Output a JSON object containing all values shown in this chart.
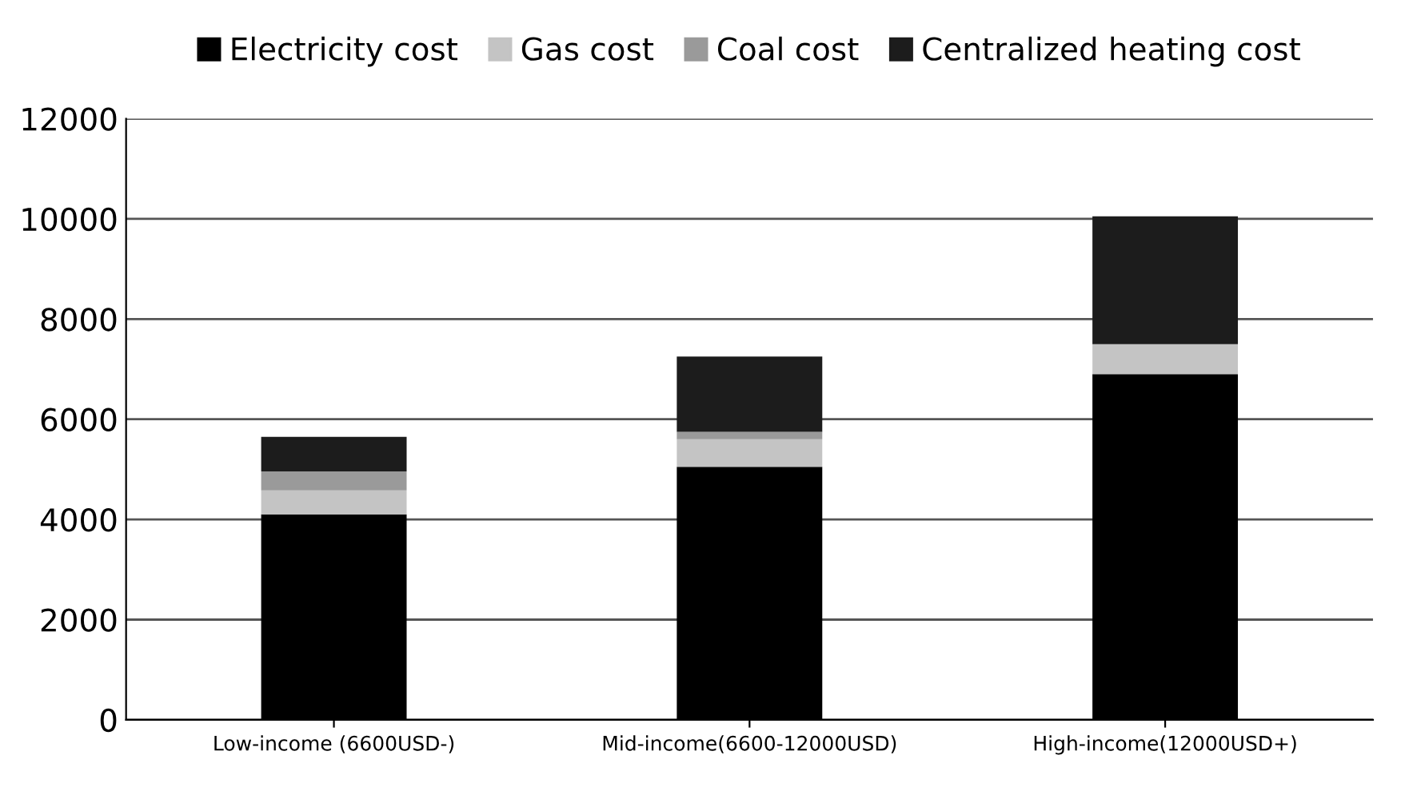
{
  "chart_data": {
    "type": "bar",
    "stacked": true,
    "categories": [
      "Low-income (6600USD-)",
      "Mid-income(6600-12000USD)",
      "High-income(12000USD+)"
    ],
    "series": [
      {
        "name": "Electricity cost",
        "color": "#000000",
        "values": [
          4100,
          5050,
          6900
        ]
      },
      {
        "name": "Gas cost",
        "color": "#c4c4c4",
        "values": [
          480,
          550,
          600
        ]
      },
      {
        "name": "Coal cost",
        "color": "#9a9a9a",
        "values": [
          380,
          150,
          0
        ]
      },
      {
        "name": "Centralized heating cost",
        "color": "#1c1c1c",
        "values": [
          690,
          1500,
          2550
        ]
      }
    ],
    "ylim": [
      0,
      12000
    ],
    "yticks": [
      0,
      2000,
      4000,
      6000,
      8000,
      10000,
      12000
    ],
    "grid": "y",
    "legend": "top"
  }
}
